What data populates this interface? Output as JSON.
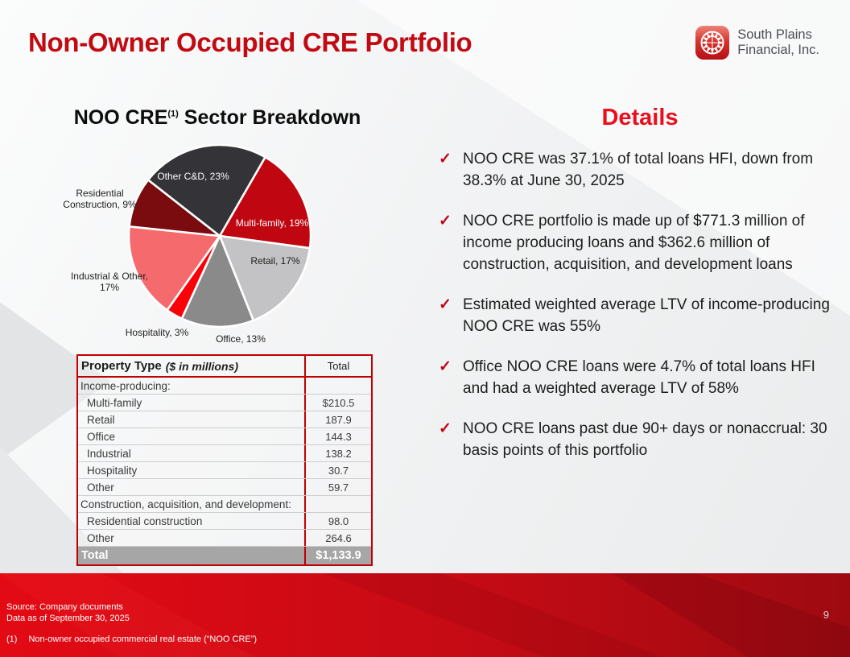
{
  "header": {
    "title": "Non-Owner Occupied CRE Portfolio",
    "logo_text_line1": "South Plains",
    "logo_text_line2": "Financial, Inc."
  },
  "sector_breakdown": {
    "title_main": "NOO CRE",
    "title_sup": "(1)",
    "title_tail": " Sector Breakdown"
  },
  "chart_data": {
    "type": "pie",
    "title": "NOO CRE (1) Sector Breakdown",
    "start_angle_deg": 30,
    "legend_position": "none",
    "slices": [
      {
        "name": "Multi-family",
        "pct": 19,
        "label": "Multi-family, 19%",
        "color": "#c00610",
        "label_color": "#ffffff",
        "label_inside": true
      },
      {
        "name": "Retail",
        "pct": 17,
        "label": "Retail, 17%",
        "color": "#c3c3c5",
        "label_color": "#1d1d1d",
        "label_inside": true
      },
      {
        "name": "Office",
        "pct": 13,
        "label": "Office, 13%",
        "color": "#8a8a8a",
        "label_color": "#1d1d1d",
        "label_inside": false
      },
      {
        "name": "Hospitality",
        "pct": 3,
        "label": "Hospitality, 3%",
        "color": "#fb0006",
        "label_color": "#1d1d1d",
        "label_inside": false
      },
      {
        "name": "Industrial & Other",
        "pct": 17,
        "label": "Industrial & Other, 17%",
        "color": "#f56b6d",
        "label_color": "#1d1d1d",
        "label_inside": false
      },
      {
        "name": "Residential Construction",
        "pct": 9,
        "label": "Residential Construction, 9%",
        "color": "#7a0b0f",
        "label_color": "#1d1d1d",
        "label_inside": false
      },
      {
        "name": "Other C&D",
        "pct": 23,
        "label": "Other C&D, 23%",
        "color": "#333338",
        "label_color": "#ffffff",
        "label_inside": true
      }
    ]
  },
  "table": {
    "header_label": "Property Type",
    "header_label_note": "($ in millions)",
    "header_value": "Total",
    "rows": [
      {
        "label": "Income-producing:",
        "value": "",
        "section": true
      },
      {
        "label": "Multi-family",
        "value": "$210.5"
      },
      {
        "label": "Retail",
        "value": "187.9"
      },
      {
        "label": "Office",
        "value": "144.3"
      },
      {
        "label": "Industrial",
        "value": "138.2"
      },
      {
        "label": "Hospitality",
        "value": "30.7"
      },
      {
        "label": "Other",
        "value": "59.7"
      },
      {
        "label": "Construction, acquisition, and development:",
        "value": "",
        "section": true
      },
      {
        "label": "Residential construction",
        "value": "98.0"
      },
      {
        "label": "Other",
        "value": "264.6"
      }
    ],
    "total_label": "Total",
    "total_value": "$1,133.9"
  },
  "details": {
    "heading": "Details",
    "check_glyph": "✓",
    "bullets": [
      "NOO CRE was 37.1% of total loans HFI, down from 38.3% at June 30, 2025",
      "NOO CRE portfolio is made up of $771.3 million of income producing loans and $362.6 million of construction, acquisition, and development loans",
      "Estimated weighted average LTV of income-producing NOO CRE was 55%",
      "Office NOO CRE loans were 4.7% of total loans HFI and had a weighted average LTV of 58%",
      "NOO CRE loans past due 90+ days or nonaccrual: 30 basis points of this portfolio"
    ]
  },
  "footer": {
    "source_line1": "Source: Company documents",
    "source_line2": "Data as of September 30, 2025",
    "footnote_marker": "(1)",
    "footnote_text": "Non-owner occupied commercial real estate (“NOO CRE”)",
    "page_number": "9"
  },
  "colors": {
    "title_red": "#c10a12",
    "details_red": "#e8101c",
    "check_red": "#c00718",
    "table_border_red": "#c00000",
    "total_row_gray": "#a6a6a6",
    "band_red_left": "#e30a14",
    "band_red_right": "#9e0a11"
  }
}
